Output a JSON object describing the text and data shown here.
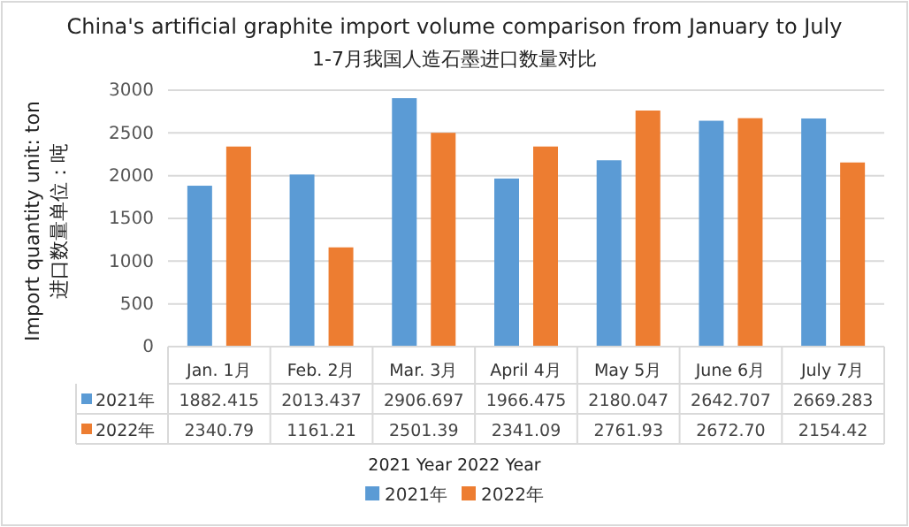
{
  "chart_data": {
    "type": "bar",
    "title": "China's artificial graphite import volume comparison from January to July",
    "subtitle": "1-7月我国人造石墨进口数量对比",
    "ylabel": "Import quantity unit: ton\n进口数量单位：吨",
    "categories": [
      "Jan. 1月",
      "Feb. 2月",
      "Mar. 3月",
      "April 4月",
      "May 5月",
      "June 6月",
      "July 7月"
    ],
    "series": [
      {
        "name": "2021年",
        "color": "#5b9bd5",
        "values": [
          1882.415,
          2013.437,
          2906.697,
          1966.475,
          2180.047,
          2642.707,
          2669.283
        ],
        "value_labels": [
          "1882.415",
          "2013.437",
          "2906.697",
          "1966.475",
          "2180.047",
          "2642.707",
          "2669.283"
        ]
      },
      {
        "name": "2022年",
        "color": "#ed7d31",
        "values": [
          2340.79,
          1161.21,
          2501.39,
          2341.09,
          2761.93,
          2672.7,
          2154.42
        ],
        "value_labels": [
          "2340.79",
          "1161.21",
          "2501.39",
          "2341.09",
          "2761.93",
          "2672.70",
          "2154.42"
        ]
      }
    ],
    "ylim": [
      0,
      3000
    ],
    "yticks": [
      0,
      500,
      1000,
      1500,
      2000,
      2500,
      3000
    ],
    "grid": "y",
    "legend": "bottom",
    "annotations": [
      "2021 Year   2022 Year"
    ]
  }
}
